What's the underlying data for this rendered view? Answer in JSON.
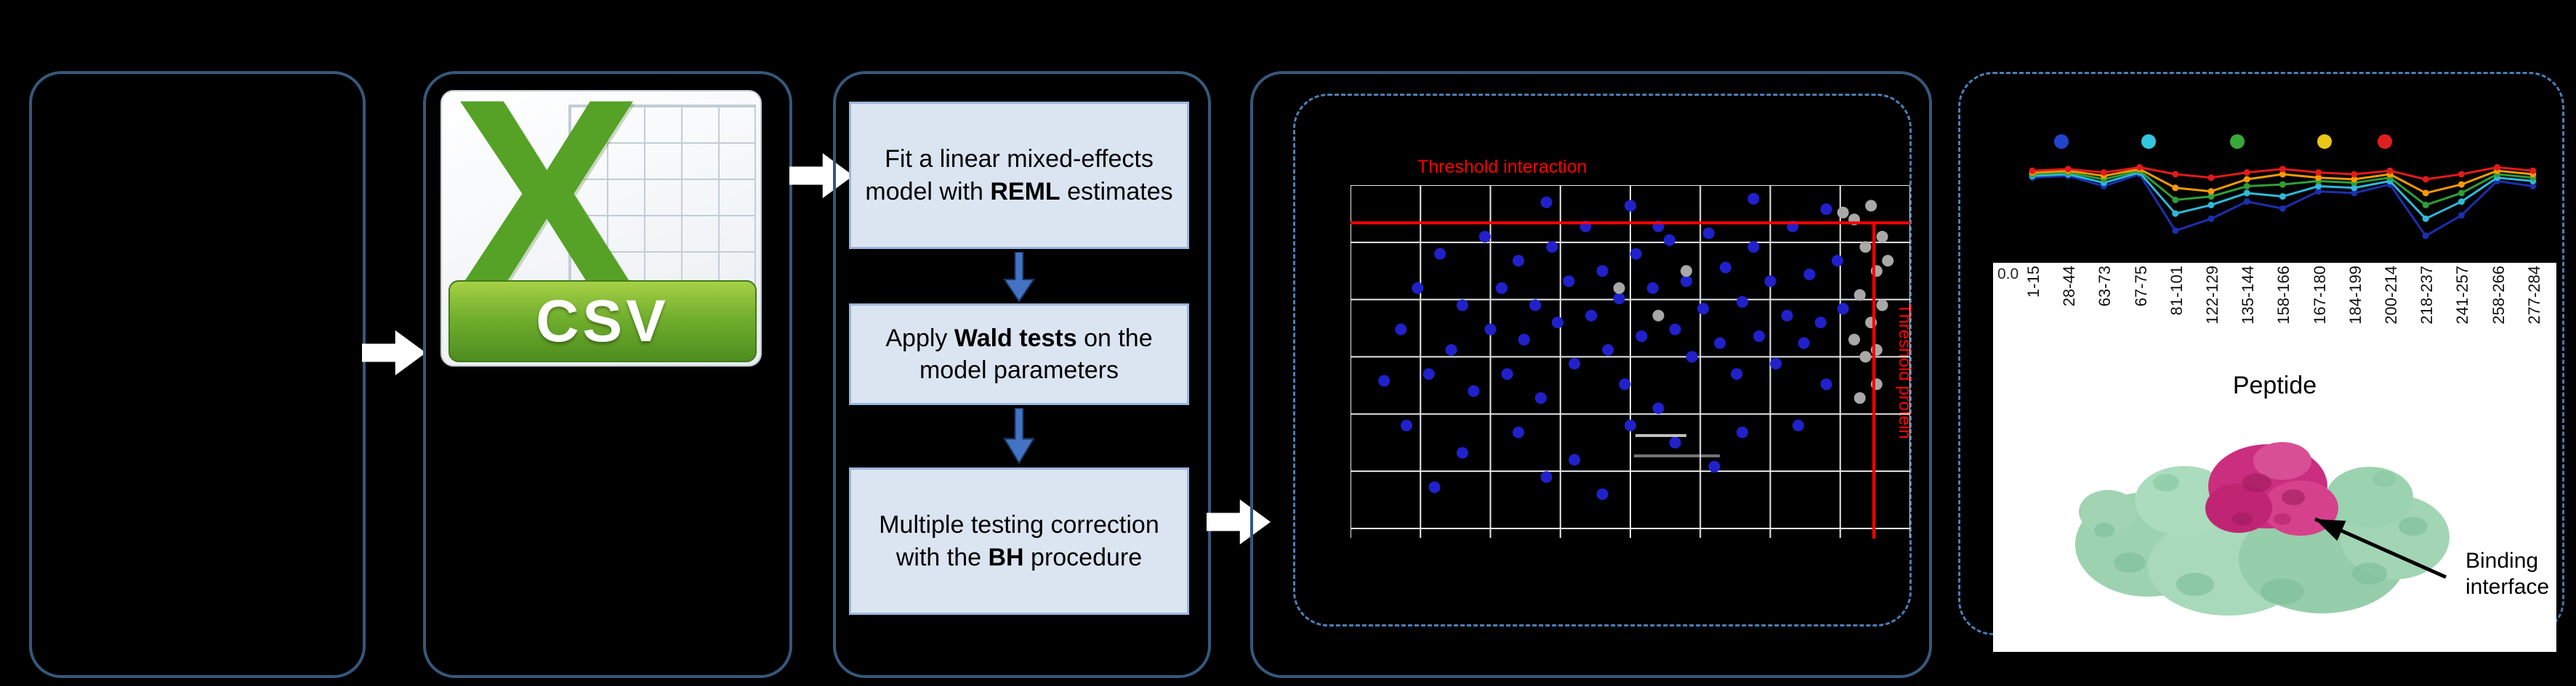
{
  "csv_panel": {
    "x_letter": "X",
    "csv_label": "CSV"
  },
  "pipeline": {
    "steps": [
      {
        "pre": "Fit a linear mixed-effects model with ",
        "bold": "REML",
        "post": " estimates"
      },
      {
        "pre": "Apply ",
        "bold": "Wald tests",
        "post": " on the model parameters"
      },
      {
        "pre": "Multiple testing correction with the ",
        "bold": "BH",
        "post": " procedure"
      }
    ]
  },
  "volcano": {
    "label_top": "Threshold interaction",
    "label_right": "Threshold protein",
    "threshold_color": "#ff0000"
  },
  "results_panel": {
    "y_tick": "0.0",
    "x_label": "Peptide",
    "annotation": "Binding interface",
    "tick_labels": [
      "1-15",
      "28-44",
      "63-73",
      "67-75",
      "81-101",
      "122-129",
      "135-144",
      "158-166",
      "167-180",
      "184-199",
      "200-214",
      "218-237",
      "241-257",
      "258-266",
      "277-284"
    ]
  },
  "chart_data": [
    {
      "type": "scatter",
      "title": "",
      "grid": {
        "v_lines": 9,
        "h_lines": 7,
        "color": "#e8e8e8"
      },
      "thresholds": {
        "horizontal_y_pct": 11,
        "vertical_x_pct": 93.5,
        "color": "#ff0000",
        "horizontal_label": "Threshold interaction",
        "vertical_label": "Threshold protein"
      },
      "series": [
        {
          "name": "blue-points",
          "color": "#2121cc",
          "points": [
            [
              6,
              57
            ],
            [
              9,
              42
            ],
            [
              12,
              30
            ],
            [
              14,
              55
            ],
            [
              16,
              20
            ],
            [
              18,
              48
            ],
            [
              20,
              35
            ],
            [
              22,
              60
            ],
            [
              24,
              15
            ],
            [
              25,
              42
            ],
            [
              27,
              30
            ],
            [
              28,
              55
            ],
            [
              30,
              22
            ],
            [
              31,
              45
            ],
            [
              33,
              35
            ],
            [
              34,
              62
            ],
            [
              36,
              18
            ],
            [
              37,
              40
            ],
            [
              39,
              28
            ],
            [
              40,
              52
            ],
            [
              42,
              12
            ],
            [
              43,
              38
            ],
            [
              45,
              25
            ],
            [
              46,
              48
            ],
            [
              48,
              33
            ],
            [
              49,
              58
            ],
            [
              51,
              20
            ],
            [
              52,
              44
            ],
            [
              54,
              30
            ],
            [
              55,
              65
            ],
            [
              57,
              16
            ],
            [
              58,
              42
            ],
            [
              60,
              28
            ],
            [
              61,
              50
            ],
            [
              63,
              36
            ],
            [
              64,
              14
            ],
            [
              66,
              46
            ],
            [
              67,
              24
            ],
            [
              69,
              55
            ],
            [
              70,
              34
            ],
            [
              72,
              18
            ],
            [
              73,
              44
            ],
            [
              75,
              28
            ],
            [
              76,
              52
            ],
            [
              78,
              38
            ],
            [
              79,
              12
            ],
            [
              81,
              46
            ],
            [
              82,
              26
            ],
            [
              84,
              40
            ],
            [
              85,
              58
            ],
            [
              87,
              22
            ],
            [
              88,
              36
            ],
            [
              58,
              75
            ],
            [
              40,
              80
            ],
            [
              30,
              72
            ],
            [
              20,
              78
            ],
            [
              70,
              72
            ],
            [
              50,
              70
            ],
            [
              10,
              70
            ],
            [
              35,
              85
            ],
            [
              65,
              82
            ],
            [
              15,
              88
            ],
            [
              80,
              70
            ],
            [
              45,
              90
            ],
            [
              55,
              12
            ],
            [
              35,
              5
            ],
            [
              50,
              6
            ],
            [
              72,
              4
            ],
            [
              85,
              7
            ]
          ]
        },
        {
          "name": "gray-points",
          "color": "#a8a8a8",
          "points": [
            [
              90,
              10
            ],
            [
              92,
              18
            ],
            [
              94,
              25
            ],
            [
              91,
              32
            ],
            [
              93,
              40
            ],
            [
              95,
              15
            ],
            [
              92,
              50
            ],
            [
              94,
              58
            ],
            [
              90,
              45
            ],
            [
              93,
              6
            ],
            [
              95,
              35
            ],
            [
              91,
              62
            ],
            [
              96,
              22
            ],
            [
              94,
              48
            ],
            [
              48,
              30
            ],
            [
              55,
              38
            ],
            [
              60,
              25
            ],
            [
              88,
              8
            ]
          ]
        }
      ]
    },
    {
      "type": "line",
      "xlabel": "Peptide",
      "x_labels": [
        "1-15",
        "28-44",
        "63-73",
        "67-75",
        "81-101",
        "122-129",
        "135-144",
        "158-166",
        "167-180",
        "184-199",
        "200-214",
        "218-237",
        "241-257",
        "258-266",
        "277-284"
      ],
      "legend_colors": [
        "#2244cc",
        "#33c6e0",
        "#3aa83a",
        "#e8c616",
        "#e02020"
      ],
      "series": [
        {
          "name": "navy",
          "color": "#1c2fae",
          "values": [
            0.74,
            0.76,
            0.64,
            0.78,
            0.12,
            0.26,
            0.46,
            0.38,
            0.58,
            0.56,
            0.66,
            0.06,
            0.3,
            0.7,
            0.64
          ]
        },
        {
          "name": "cyan",
          "color": "#2fb9d8",
          "values": [
            0.76,
            0.78,
            0.68,
            0.8,
            0.32,
            0.42,
            0.56,
            0.52,
            0.64,
            0.62,
            0.7,
            0.26,
            0.46,
            0.74,
            0.7
          ]
        },
        {
          "name": "green",
          "color": "#2f9e38",
          "values": [
            0.78,
            0.8,
            0.72,
            0.82,
            0.48,
            0.52,
            0.64,
            0.66,
            0.7,
            0.68,
            0.74,
            0.42,
            0.56,
            0.78,
            0.74
          ]
        },
        {
          "name": "orange",
          "color": "#f59a00",
          "values": [
            0.8,
            0.82,
            0.76,
            0.84,
            0.62,
            0.58,
            0.72,
            0.78,
            0.74,
            0.72,
            0.78,
            0.56,
            0.66,
            0.82,
            0.78
          ]
        },
        {
          "name": "red",
          "color": "#e31a1a",
          "values": [
            0.82,
            0.84,
            0.8,
            0.86,
            0.78,
            0.74,
            0.8,
            0.84,
            0.8,
            0.78,
            0.82,
            0.72,
            0.78,
            0.86,
            0.82
          ]
        }
      ]
    }
  ]
}
